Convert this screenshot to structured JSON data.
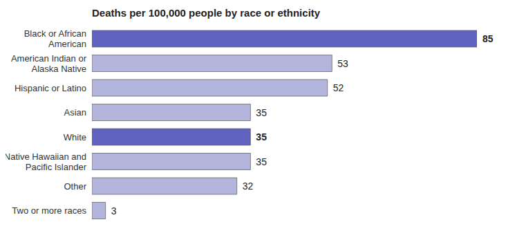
{
  "chart_data": {
    "type": "bar",
    "orientation": "horizontal",
    "title": "Deaths per 100,000 people by race or ethnicity",
    "categories": [
      "Black or African American",
      "American Indian or Alaska Native",
      "Hispanic or Latino",
      "Asian",
      "White",
      "Native Hawaiian and Pacific Islander",
      "Other",
      "Two or more races"
    ],
    "values": [
      85,
      53,
      52,
      35,
      35,
      35,
      32,
      3
    ],
    "colors": [
      "#6163c1",
      "#b4b5dc",
      "#b4b5dc",
      "#b4b5dc",
      "#6163c1",
      "#b4b5dc",
      "#b4b5dc",
      "#b4b5dc"
    ],
    "xlim": [
      0,
      85
    ],
    "data_labels": true,
    "tick_labels": "y"
  }
}
